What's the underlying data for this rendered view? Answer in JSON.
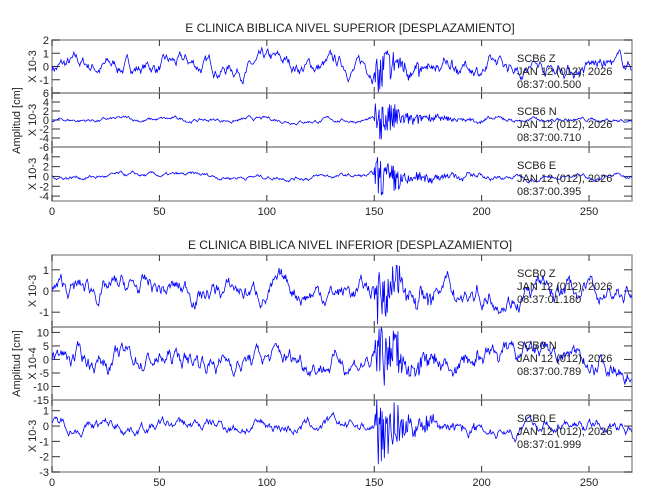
{
  "chart_data": [
    {
      "type": "line",
      "title": "E CLINICA BIBLICA NIVEL SUPERIOR [DESPLAZAMIENTO]",
      "ylabel": "Amplitud [cm]",
      "xlim": [
        0,
        270
      ],
      "xticks": [
        0,
        50,
        100,
        150,
        200,
        250
      ],
      "color": "#0000ff",
      "grid": false,
      "series": [
        {
          "station": "SCB6",
          "component": "Z",
          "date": "JAN 12 (012), 2026",
          "time": "08:37:00.500",
          "scale": "X 10-3",
          "ylim": [
            -2,
            2
          ],
          "yticks": [
            -1,
            0,
            1,
            2
          ],
          "noise_amplitude": 0.6,
          "event_onset": 150,
          "peak_amplitude": 2.0
        },
        {
          "station": "SCB6",
          "component": "N",
          "date": "JAN 12 (012), 2026",
          "time": "08:37:00.710",
          "scale": "X 10-3",
          "ylim": [
            -6,
            6
          ],
          "yticks": [
            -6,
            -4,
            -2,
            0,
            2,
            4,
            6
          ],
          "noise_amplitude": 0.5,
          "event_onset": 150,
          "peak_amplitude": 5.5
        },
        {
          "station": "SCB6",
          "component": "E",
          "date": "JAN 12 (012), 2026",
          "time": "08:37:00.395",
          "scale": "X 10-3",
          "ylim": [
            -5,
            6
          ],
          "yticks": [
            -4,
            -2,
            0,
            2,
            4
          ],
          "noise_amplitude": 0.5,
          "event_onset": 150,
          "peak_amplitude": 5.0
        }
      ]
    },
    {
      "type": "line",
      "title": "E CLINICA BIBLICA NIVEL INFERIOR [DESPLAZAMIENTO]",
      "ylabel": "Amplitud [cm]",
      "xlim": [
        0,
        270
      ],
      "xticks": [
        0,
        50,
        100,
        150,
        200,
        250
      ],
      "color": "#0000ff",
      "grid": false,
      "series": [
        {
          "station": "SCB0",
          "component": "Z",
          "date": "JAN 12 (012), 2026",
          "time": "08:37:01.180",
          "scale": "X 10-3",
          "ylim": [
            -1.7,
            1.7
          ],
          "yticks": [
            -1,
            0,
            1
          ],
          "noise_amplitude": 0.5,
          "event_onset": 150,
          "peak_amplitude": 1.7
        },
        {
          "station": "SCB0",
          "component": "N",
          "date": "JAN 12 (012), 2026",
          "time": "08:37:00.789",
          "scale": "X 10-4",
          "ylim": [
            -15,
            12
          ],
          "yticks": [
            -15,
            -10,
            -5,
            0,
            5,
            10
          ],
          "noise_amplitude": 4,
          "event_onset": 150,
          "peak_amplitude": 13
        },
        {
          "station": "SCB0",
          "component": "E",
          "date": "JAN 12 (012), 2026",
          "time": "08:37:01.999",
          "scale": "X 10-3",
          "ylim": [
            -3,
            1.7
          ],
          "yticks": [
            -3,
            -2,
            -1,
            0,
            1
          ],
          "noise_amplitude": 0.4,
          "event_onset": 150,
          "peak_amplitude": 2.8
        }
      ]
    }
  ]
}
